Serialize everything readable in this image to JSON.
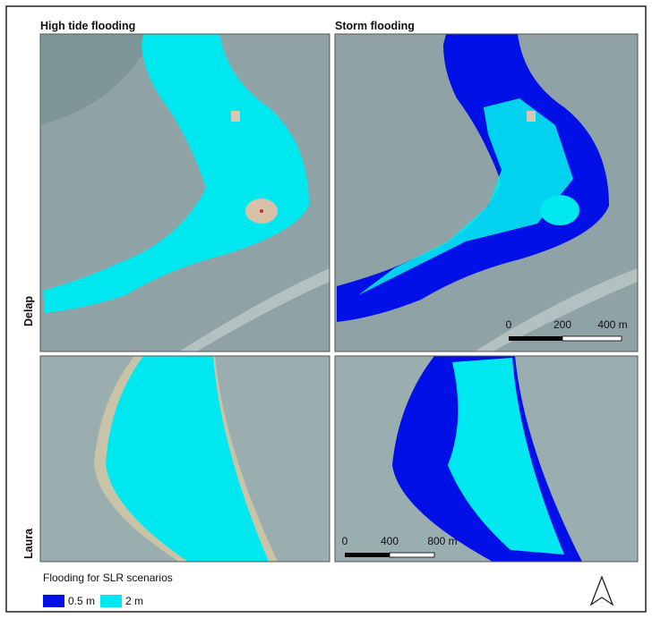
{
  "columns": [
    "High tide flooding",
    "Storm flooding"
  ],
  "rows": [
    "Delap",
    "Laura"
  ],
  "scale_bars": [
    {
      "labels": [
        "0",
        "200",
        "400 m"
      ]
    },
    {
      "labels": [
        "0",
        "400",
        "800 m"
      ]
    }
  ],
  "legend": {
    "title": "Flooding for SLR scenarios",
    "items": [
      {
        "label": "0.5 m",
        "color": "#0010e6"
      },
      {
        "label": "2 m",
        "color": "#00e8ef"
      }
    ]
  }
}
